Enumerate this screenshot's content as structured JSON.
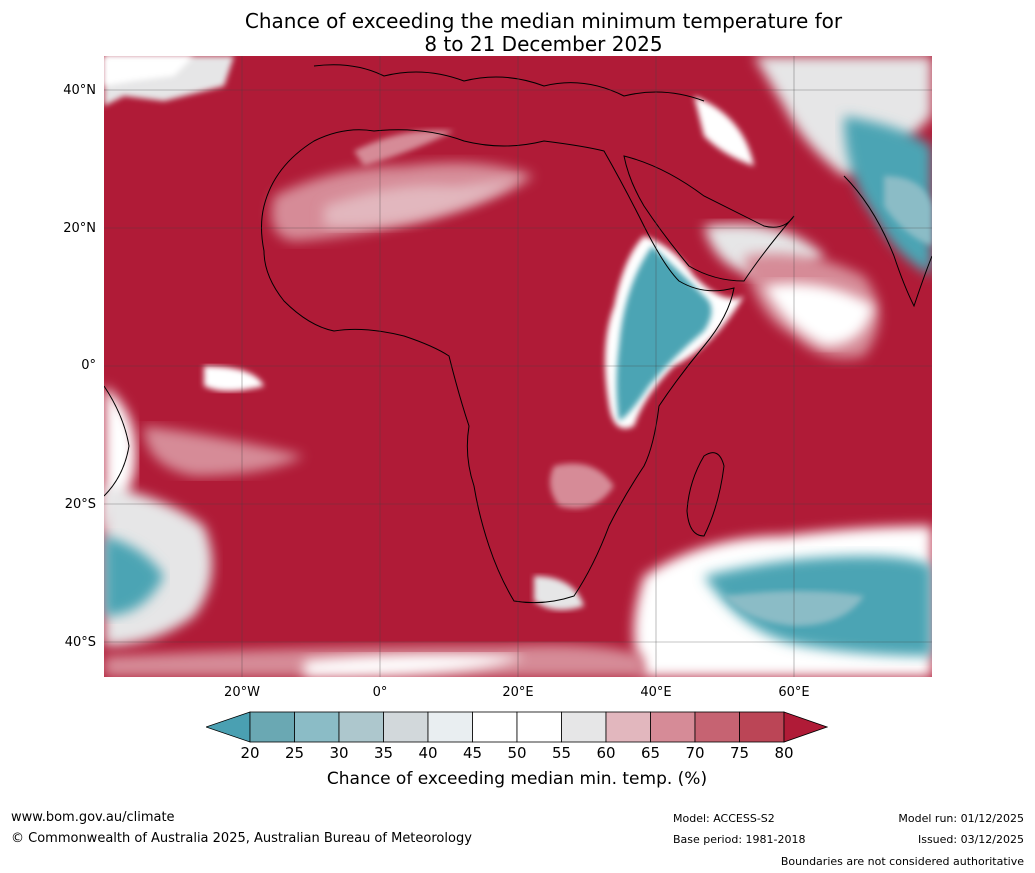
{
  "title": {
    "line1": "Chance of exceeding the median minimum temperature for",
    "line2": "8 to 21 December 2025"
  },
  "map": {
    "region": "Africa",
    "lat_labels": [
      "40°N",
      "20°N",
      "0°",
      "20°S",
      "40°S"
    ],
    "lon_labels": [
      "20°W",
      "0°",
      "20°E",
      "40°E",
      "60°E"
    ],
    "dominant_color": "#b01b37",
    "low_color": "#4ba4b4"
  },
  "colorbar": {
    "ticks": [
      "20",
      "25",
      "30",
      "35",
      "40",
      "45",
      "50",
      "55",
      "60",
      "65",
      "70",
      "75",
      "80"
    ],
    "colors": [
      "#4aa0b2",
      "#6aa8b3",
      "#8bbcc6",
      "#adc7cd",
      "#d2d8db",
      "#e9eef1",
      "#ffffff",
      "#ffffff",
      "#e6e6e7",
      "#e2b7be",
      "#d68b97",
      "#c66372",
      "#bb4556",
      "#b01b37"
    ],
    "label": "Chance of exceeding median min. temp. (%)"
  },
  "footer": {
    "website": "www.bom.gov.au/climate",
    "copyright": "© Commonwealth of Australia 2025, Australian Bureau of Meteorology",
    "model": "Model: ACCESS-S2",
    "base_period": "Base period: 1981-2018",
    "model_run": "Model run: 01/12/2025",
    "issued": "Issued: 03/12/2025",
    "disclaimer": "Boundaries are not considered authoritative"
  }
}
